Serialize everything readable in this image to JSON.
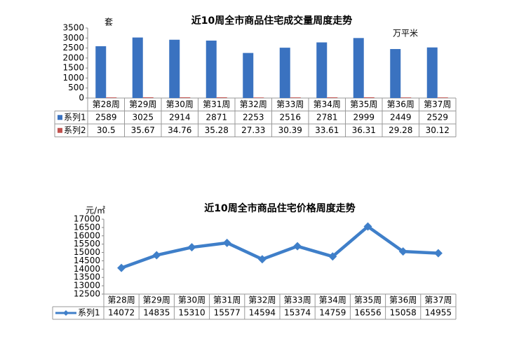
{
  "chart_data": [
    {
      "type": "bar",
      "title": "近10周全市商品住宅成交量周度走势",
      "y_label": "套",
      "y2_label": "万平米",
      "categories": [
        "第28周",
        "第29周",
        "第30周",
        "第31周",
        "第32周",
        "第33周",
        "第34周",
        "第35周",
        "第36周",
        "第37周"
      ],
      "series": [
        {
          "name": "系列1",
          "color": "#3a72c0",
          "values": [
            2589,
            3025,
            2914,
            2871,
            2253,
            2516,
            2781,
            2999,
            2449,
            2529
          ]
        },
        {
          "name": "系列2",
          "color": "#c0504d",
          "values": [
            30.5,
            35.67,
            34.76,
            35.28,
            27.33,
            30.39,
            33.61,
            36.31,
            29.28,
            30.12
          ]
        }
      ],
      "ylim": [
        0,
        3500
      ],
      "yticks": [
        0,
        500,
        1000,
        1500,
        2000,
        2500,
        3000,
        3500
      ]
    },
    {
      "type": "line",
      "title": "近10周全市商品住宅价格周度走势",
      "y_label": "元/㎡",
      "categories": [
        "第28周",
        "第29周",
        "第30周",
        "第31周",
        "第32周",
        "第33周",
        "第34周",
        "第35周",
        "第36周",
        "第37周"
      ],
      "series": [
        {
          "name": "系列1",
          "color": "#3f7fc9",
          "values": [
            14072,
            14835,
            15310,
            15577,
            14594,
            15374,
            14759,
            16556,
            15058,
            14955
          ]
        }
      ],
      "ylim": [
        12500,
        17000
      ],
      "yticks": [
        12500,
        13000,
        13500,
        14000,
        14500,
        15000,
        15500,
        16000,
        16500,
        17000
      ]
    }
  ]
}
